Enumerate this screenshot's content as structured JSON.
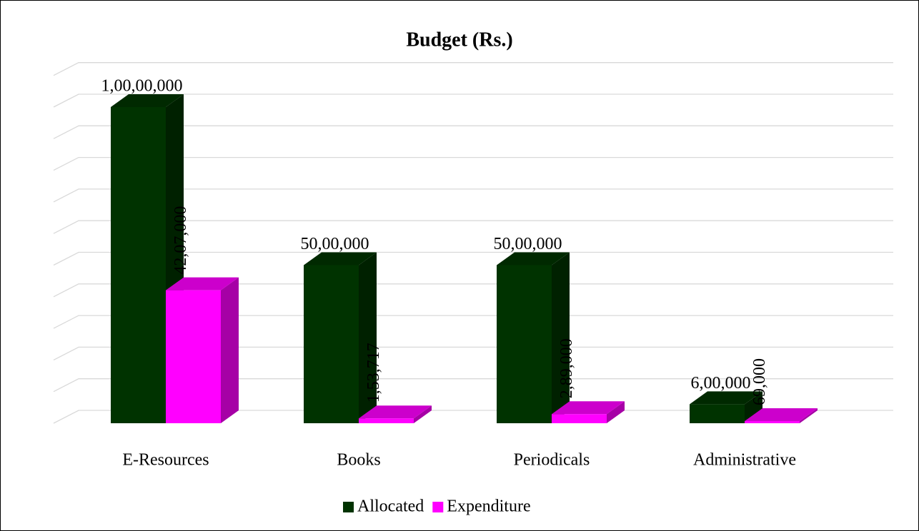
{
  "chart_data": {
    "type": "bar",
    "title": "Budget (Rs.)",
    "categories": [
      "E-Resources",
      "Books",
      "Periodicals",
      "Administrative"
    ],
    "series": [
      {
        "name": "Allocated",
        "color": "#003300",
        "values": [
          10000000,
          5000000,
          5000000,
          600000
        ],
        "value_labels": [
          "1,00,00,000",
          "50,00,000",
          "50,00,000",
          "6,00,000"
        ]
      },
      {
        "name": "Expenditure",
        "color": "#ff00ff",
        "values": [
          4207000,
          153717,
          289000,
          69000
        ],
        "value_labels": [
          "42,07,000",
          "1,53,717",
          "2,89,000",
          "69,000"
        ]
      }
    ],
    "ylim": [
      0,
      11000000
    ],
    "yticks": [
      0,
      1000000,
      2000000,
      3000000,
      4000000,
      5000000,
      6000000,
      7000000,
      8000000,
      9000000,
      10000000,
      11000000
    ],
    "grid": true,
    "legend": "bottom"
  }
}
